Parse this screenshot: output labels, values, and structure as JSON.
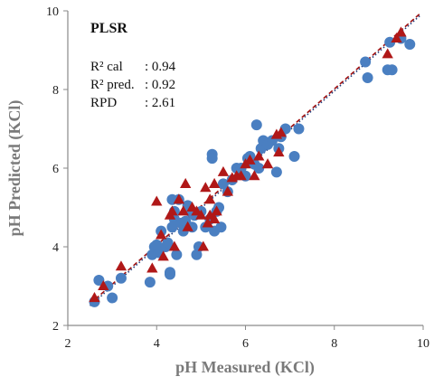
{
  "chart_data": {
    "type": "scatter",
    "title": "PLSR",
    "xlabel": "pH Measured (KCl)",
    "ylabel": "pH Predicted (KCl)",
    "xlim": [
      2,
      10
    ],
    "ylim": [
      2,
      10
    ],
    "x_ticks": [
      "2",
      "4",
      "6",
      "8",
      "10"
    ],
    "y_ticks": [
      "2",
      "4",
      "6",
      "8",
      "10"
    ],
    "grid": false,
    "stats": [
      {
        "label": "R² cal",
        "value": ": 0.94"
      },
      {
        "label": "R² pred.",
        "value": ": 0.92"
      },
      {
        "label": "RPD",
        "value": ": 2.61"
      }
    ],
    "colors": {
      "circles": "#4a7fc1",
      "triangles": "#b01818",
      "line1": "#a01010",
      "line2": "#1f3a7a"
    },
    "lines": [
      {
        "style": "dashed",
        "color": "#a01010",
        "x": [
          2.5,
          9.95
        ],
        "y": [
          2.55,
          9.95
        ]
      },
      {
        "style": "dotted",
        "color": "#1f3a7a",
        "x": [
          2.5,
          9.95
        ],
        "y": [
          2.5,
          9.9
        ]
      }
    ],
    "series": [
      {
        "marker": "circle",
        "color": "#4a7fc1",
        "x": [
          2.6,
          2.7,
          2.9,
          3.0,
          3.2,
          3.85,
          3.9,
          3.95,
          4.0,
          4.05,
          4.1,
          4.2,
          4.25,
          4.3,
          4.3,
          4.35,
          4.35,
          4.4,
          4.4,
          4.45,
          4.5,
          4.55,
          4.6,
          4.65,
          4.7,
          4.75,
          4.8,
          4.85,
          4.9,
          4.95,
          5.0,
          5.1,
          5.2,
          5.25,
          5.25,
          5.3,
          5.35,
          5.4,
          5.45,
          5.5,
          5.6,
          5.7,
          5.8,
          5.9,
          6.0,
          6.05,
          6.1,
          6.2,
          6.25,
          6.3,
          6.35,
          6.4,
          6.5,
          6.6,
          6.7,
          6.75,
          6.8,
          6.9,
          7.1,
          7.2,
          8.7,
          8.75,
          9.2,
          9.25,
          9.3,
          9.5,
          9.7
        ],
        "y": [
          2.6,
          3.15,
          3.0,
          2.7,
          3.2,
          3.1,
          3.8,
          4.0,
          4.05,
          3.85,
          4.4,
          4.0,
          4.1,
          3.35,
          3.3,
          4.5,
          5.2,
          4.7,
          4.9,
          3.8,
          5.2,
          4.6,
          4.4,
          4.65,
          5.05,
          4.9,
          4.5,
          4.8,
          3.8,
          4.0,
          4.9,
          4.5,
          4.7,
          6.35,
          6.25,
          4.4,
          4.9,
          5.0,
          4.5,
          5.6,
          5.4,
          5.7,
          6.0,
          6.0,
          5.8,
          6.25,
          6.3,
          6.1,
          7.1,
          6.0,
          6.5,
          6.7,
          6.6,
          6.7,
          5.9,
          6.5,
          6.8,
          7.0,
          6.3,
          7.0,
          8.7,
          8.3,
          8.5,
          9.2,
          8.5,
          9.3,
          9.15
        ]
      },
      {
        "marker": "triangle",
        "color": "#b01818",
        "x": [
          2.6,
          2.8,
          3.2,
          3.9,
          4.0,
          4.1,
          4.15,
          4.3,
          4.35,
          4.4,
          4.5,
          4.6,
          4.65,
          4.7,
          4.8,
          4.9,
          5.0,
          5.05,
          5.1,
          5.15,
          5.2,
          5.2,
          5.3,
          5.3,
          5.35,
          5.5,
          5.6,
          5.7,
          5.8,
          5.9,
          6.0,
          6.1,
          6.2,
          6.3,
          6.5,
          6.7,
          6.75,
          6.8,
          9.2,
          9.4,
          9.5
        ],
        "y": [
          2.7,
          3.0,
          3.5,
          3.45,
          5.15,
          4.3,
          3.75,
          4.8,
          4.9,
          4.0,
          5.2,
          4.9,
          5.6,
          4.5,
          5.0,
          4.9,
          4.8,
          4.0,
          5.5,
          4.6,
          4.8,
          5.2,
          4.7,
          5.6,
          4.9,
          5.9,
          5.4,
          5.75,
          5.8,
          5.8,
          6.1,
          6.2,
          5.8,
          6.3,
          6.1,
          6.85,
          6.4,
          6.9,
          8.9,
          9.3,
          9.45
        ]
      }
    ]
  }
}
